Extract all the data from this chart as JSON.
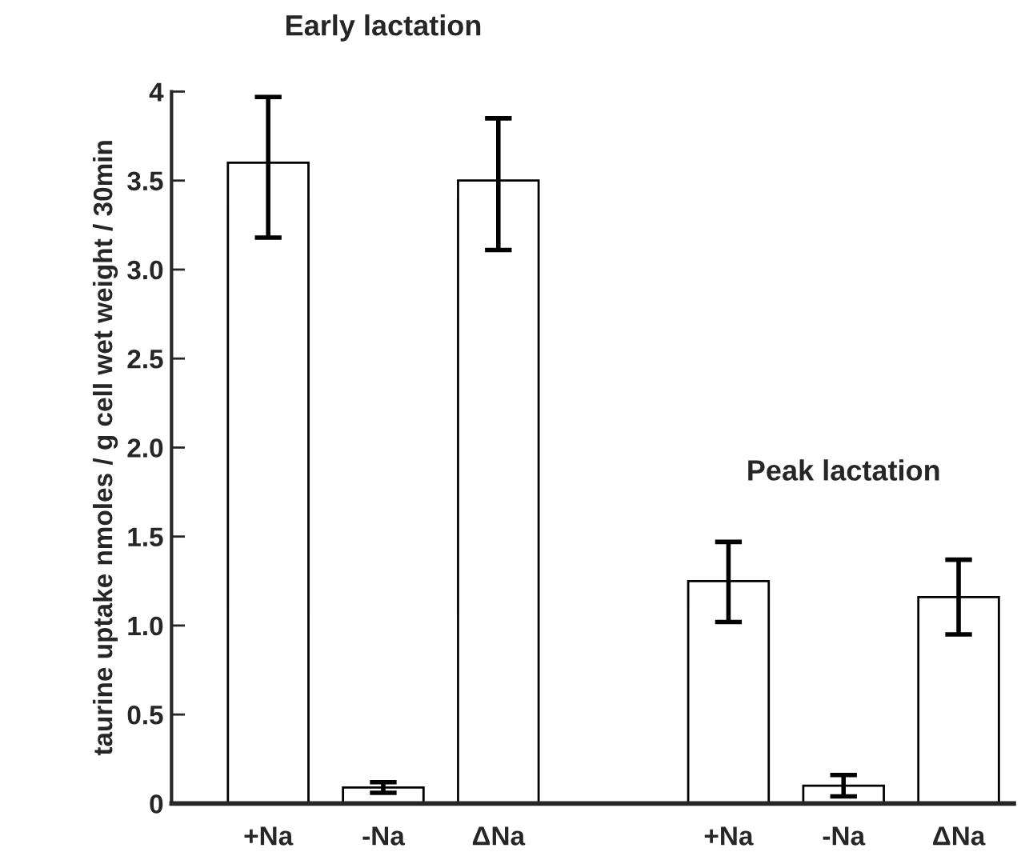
{
  "chart_data": {
    "type": "bar",
    "ylabel": "taurine uptake nmoles / g cell wet weight / 30min",
    "categories": [
      "+Na",
      "-Na",
      "ΔNa",
      null,
      "+Na",
      "-Na",
      "ΔNa"
    ],
    "values": [
      3.6,
      0.09,
      3.5,
      null,
      1.25,
      0.1,
      1.16
    ],
    "errors": [
      [
        3.18,
        3.97
      ],
      [
        0.06,
        0.12
      ],
      [
        3.11,
        3.85
      ],
      null,
      [
        1.02,
        1.47
      ],
      [
        0.04,
        0.16
      ],
      [
        0.95,
        1.37
      ]
    ],
    "color": "#ffffff",
    "ylim": [
      0,
      4
    ],
    "yticks": [
      0,
      {
        "value": 0.5,
        "label": "0.5"
      },
      {
        "value": 1,
        "label": "1.0"
      },
      {
        "value": 1.5,
        "label": "1.5"
      },
      {
        "value": 2,
        "label": "2.0"
      },
      {
        "value": 2.5,
        "label": "2.5"
      },
      {
        "value": 3,
        "label": "3.0"
      },
      {
        "value": 3.5,
        "label": "3.5"
      },
      4
    ],
    "annotations": [
      "Early lactation",
      "Peak lactation"
    ],
    "grid": false
  }
}
